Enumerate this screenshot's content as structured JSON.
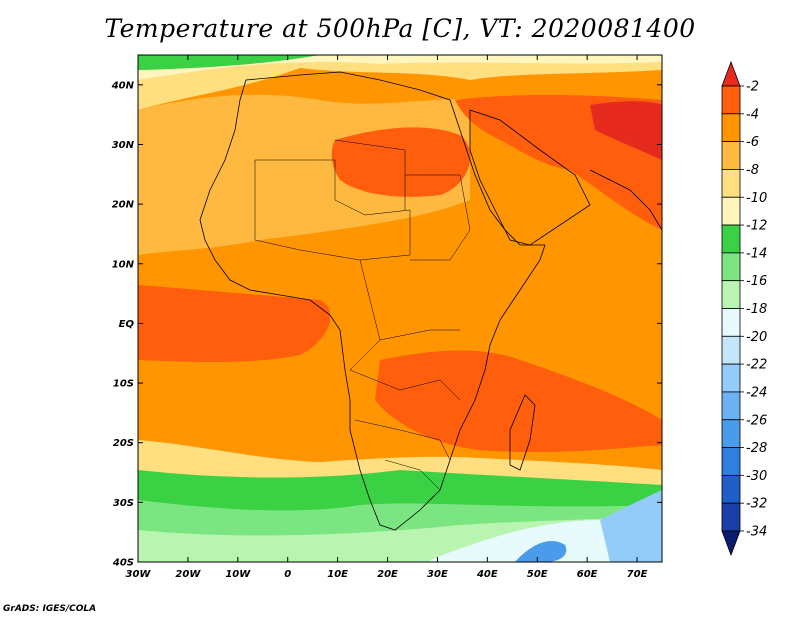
{
  "title": "Temperature at 500hPa [C], VT: 2020081400",
  "credit": "GrADS: IGES/COLA",
  "colors": {
    "-34": "#0c1b72",
    "-32": "#1a3fa8",
    "-30": "#1f5dc9",
    "-28": "#2e7fe0",
    "-26": "#4a9bec",
    "-24": "#6cb2f3",
    "-22": "#93ccf8",
    "-20": "#c3e6fb",
    "-18": "#e8fbfc",
    "-16": "#b9f5b0",
    "-14": "#7be681",
    "-12": "#3bd144",
    "-10": "#fff6bd",
    "-8": "#ffdf7f",
    "-6": "#ffb940",
    "-4": "#ff9500",
    "-2": "#ff5e0d",
    "over": "#e62b1e"
  },
  "map": {
    "lon_range": [
      -30,
      75
    ],
    "lat_range": [
      -40,
      45
    ],
    "lon_ticks": [
      "30W",
      "20W",
      "10W",
      "0",
      "10E",
      "20E",
      "30E",
      "40E",
      "50E",
      "60E",
      "70E"
    ],
    "lat_ticks": [
      "40S",
      "30S",
      "20S",
      "10S",
      "EQ",
      "10N",
      "20N",
      "30N",
      "40N"
    ],
    "regions": [
      {
        "name": "ocean-north-band",
        "level": "-10"
      },
      {
        "name": "north-africa-warm",
        "level": "-6"
      },
      {
        "name": "tropical-belt",
        "level": "-4"
      },
      {
        "name": "sahara-hot-core",
        "level": "-2"
      },
      {
        "name": "arabia-hot-core",
        "level": "-2"
      },
      {
        "name": "south-ocean-cool",
        "level": "-12"
      },
      {
        "name": "southern-cold-patch",
        "level": "-20"
      }
    ]
  },
  "colorbar": {
    "labels": [
      "-2",
      "-4",
      "-6",
      "-8",
      "-10",
      "-12",
      "-14",
      "-16",
      "-18",
      "-20",
      "-22",
      "-24",
      "-26",
      "-28",
      "-30",
      "-32",
      "-34"
    ],
    "swatches": [
      "over",
      "-2",
      "-4",
      "-6",
      "-8",
      "-10",
      "-12",
      "-14",
      "-16",
      "-18",
      "-20",
      "-22",
      "-24",
      "-26",
      "-28",
      "-30",
      "-32",
      "-34"
    ]
  }
}
